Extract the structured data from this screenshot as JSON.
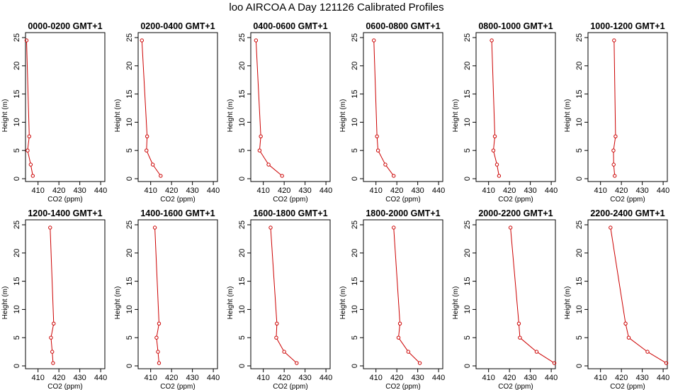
{
  "figure_title": "loo AIRCOA A  Day 121126  Calibrated Profiles",
  "colors": {
    "line": "#cc0000",
    "axis": "#000000",
    "background": "#ffffff"
  },
  "chart_data": [
    {
      "type": "line",
      "title": "0000-0200 GMT+1",
      "xlabel": "CO2 (ppm)",
      "ylabel": "Height (m)",
      "xlim": [
        404,
        442
      ],
      "ylim": [
        0,
        25
      ],
      "xticks": [
        410,
        420,
        430,
        440
      ],
      "yticks": [
        0,
        5,
        10,
        15,
        20,
        25
      ],
      "series": [
        {
          "x": [
            404.5,
            405.8,
            405.0,
            406.5,
            407.5
          ],
          "y": [
            24.5,
            7.5,
            5.0,
            2.5,
            0.5
          ]
        }
      ]
    },
    {
      "type": "line",
      "title": "0200-0400 GMT+1",
      "xlabel": "CO2 (ppm)",
      "ylabel": "Height (m)",
      "xlim": [
        404,
        442
      ],
      "ylim": [
        0,
        25
      ],
      "xticks": [
        410,
        420,
        430,
        440
      ],
      "yticks": [
        0,
        5,
        10,
        15,
        20,
        25
      ],
      "series": [
        {
          "x": [
            405.8,
            408.3,
            408.0,
            411.0,
            414.8
          ],
          "y": [
            24.5,
            7.5,
            5.0,
            2.5,
            0.5
          ]
        }
      ]
    },
    {
      "type": "line",
      "title": "0400-0600 GMT+1",
      "xlabel": "CO2 (ppm)",
      "ylabel": "Height (m)",
      "xlim": [
        404,
        442
      ],
      "ylim": [
        0,
        25
      ],
      "xticks": [
        410,
        420,
        430,
        440
      ],
      "yticks": [
        0,
        5,
        10,
        15,
        20,
        25
      ],
      "series": [
        {
          "x": [
            406.5,
            408.8,
            408.2,
            412.5,
            419.0
          ],
          "y": [
            24.5,
            7.5,
            5.0,
            2.5,
            0.5
          ]
        }
      ]
    },
    {
      "type": "line",
      "title": "0600-0800 GMT+1",
      "xlabel": "CO2 (ppm)",
      "ylabel": "Height (m)",
      "xlim": [
        404,
        442
      ],
      "ylim": [
        0,
        25
      ],
      "xticks": [
        410,
        420,
        430,
        440
      ],
      "yticks": [
        0,
        5,
        10,
        15,
        20,
        25
      ],
      "series": [
        {
          "x": [
            409.0,
            410.5,
            411.0,
            414.5,
            418.5
          ],
          "y": [
            24.5,
            7.5,
            5.0,
            2.5,
            0.5
          ]
        }
      ]
    },
    {
      "type": "line",
      "title": "0800-1000 GMT+1",
      "xlabel": "CO2 (ppm)",
      "ylabel": "Height (m)",
      "xlim": [
        404,
        442
      ],
      "ylim": [
        0,
        25
      ],
      "xticks": [
        410,
        420,
        430,
        440
      ],
      "yticks": [
        0,
        5,
        10,
        15,
        20,
        25
      ],
      "series": [
        {
          "x": [
            411.5,
            413.0,
            412.3,
            414.0,
            415.0
          ],
          "y": [
            24.5,
            7.5,
            5.0,
            2.5,
            0.5
          ]
        }
      ]
    },
    {
      "type": "line",
      "title": "1000-1200 GMT+1",
      "xlabel": "CO2 (ppm)",
      "ylabel": "Height (m)",
      "xlim": [
        404,
        442
      ],
      "ylim": [
        0,
        25
      ],
      "xticks": [
        410,
        420,
        430,
        440
      ],
      "yticks": [
        0,
        5,
        10,
        15,
        20,
        25
      ],
      "series": [
        {
          "x": [
            416.5,
            417.2,
            416.2,
            416.3,
            416.8
          ],
          "y": [
            24.5,
            7.5,
            5.0,
            2.5,
            0.5
          ]
        }
      ]
    },
    {
      "type": "line",
      "title": "1200-1400 GMT+1",
      "xlabel": "CO2 (ppm)",
      "ylabel": "Height (m)",
      "xlim": [
        404,
        442
      ],
      "ylim": [
        0,
        25
      ],
      "xticks": [
        410,
        420,
        430,
        440
      ],
      "yticks": [
        0,
        5,
        10,
        15,
        20,
        25
      ],
      "series": [
        {
          "x": [
            415.8,
            417.5,
            416.2,
            416.8,
            417.2
          ],
          "y": [
            24.5,
            7.5,
            5.0,
            2.5,
            0.5
          ]
        }
      ]
    },
    {
      "type": "line",
      "title": "1400-1600 GMT+1",
      "xlabel": "CO2 (ppm)",
      "ylabel": "Height (m)",
      "xlim": [
        404,
        442
      ],
      "ylim": [
        0,
        25
      ],
      "xticks": [
        410,
        420,
        430,
        440
      ],
      "yticks": [
        0,
        5,
        10,
        15,
        20,
        25
      ],
      "series": [
        {
          "x": [
            412.0,
            414.0,
            412.8,
            413.5,
            414.0
          ],
          "y": [
            24.5,
            7.5,
            5.0,
            2.5,
            0.5
          ]
        }
      ]
    },
    {
      "type": "line",
      "title": "1600-1800 GMT+1",
      "xlabel": "CO2 (ppm)",
      "ylabel": "Height (m)",
      "xlim": [
        404,
        442
      ],
      "ylim": [
        0,
        25
      ],
      "xticks": [
        410,
        420,
        430,
        440
      ],
      "yticks": [
        0,
        5,
        10,
        15,
        20,
        25
      ],
      "series": [
        {
          "x": [
            413.5,
            416.5,
            416.2,
            420.0,
            426.0
          ],
          "y": [
            24.5,
            7.5,
            5.0,
            2.5,
            0.5
          ]
        }
      ]
    },
    {
      "type": "line",
      "title": "1800-2000 GMT+1",
      "xlabel": "CO2 (ppm)",
      "ylabel": "Height (m)",
      "xlim": [
        404,
        442
      ],
      "ylim": [
        0,
        25
      ],
      "xticks": [
        410,
        420,
        430,
        440
      ],
      "yticks": [
        0,
        5,
        10,
        15,
        20,
        25
      ],
      "series": [
        {
          "x": [
            418.5,
            421.5,
            420.8,
            425.5,
            431.0
          ],
          "y": [
            24.5,
            7.5,
            5.0,
            2.5,
            0.5
          ]
        }
      ]
    },
    {
      "type": "line",
      "title": "2000-2200 GMT+1",
      "xlabel": "CO2 (ppm)",
      "ylabel": "Height (m)",
      "xlim": [
        404,
        442
      ],
      "ylim": [
        0,
        25
      ],
      "xticks": [
        410,
        420,
        430,
        440
      ],
      "yticks": [
        0,
        5,
        10,
        15,
        20,
        25
      ],
      "series": [
        {
          "x": [
            420.5,
            424.5,
            425.0,
            433.0,
            441.5
          ],
          "y": [
            24.5,
            7.5,
            5.0,
            2.5,
            0.5
          ]
        }
      ]
    },
    {
      "type": "line",
      "title": "2200-2400 GMT+1",
      "xlabel": "CO2 (ppm)",
      "ylabel": "Height (m)",
      "xlim": [
        404,
        442
      ],
      "ylim": [
        0,
        25
      ],
      "xticks": [
        410,
        420,
        430,
        440
      ],
      "yticks": [
        0,
        5,
        10,
        15,
        20,
        25
      ],
      "series": [
        {
          "x": [
            414.8,
            422.0,
            423.5,
            432.5,
            441.5
          ],
          "y": [
            24.5,
            7.5,
            5.0,
            2.5,
            0.5
          ]
        }
      ]
    }
  ]
}
